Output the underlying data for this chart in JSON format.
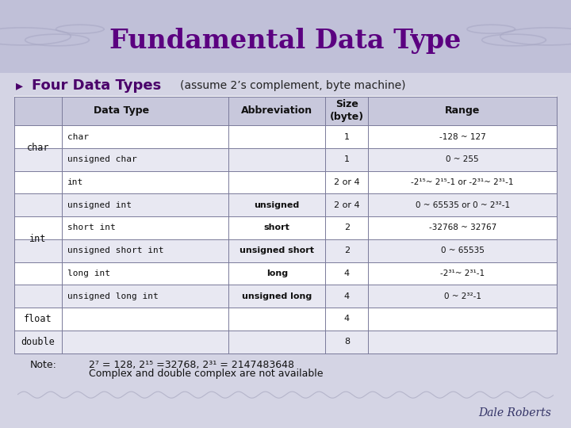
{
  "title": "Fundamental Data Type",
  "subtitle": "Four Data Types",
  "subtitle_note": "(assume 2’s complement, byte machine)",
  "bg_color": "#d4d4e4",
  "header_area_color": "#c0c0d8",
  "title_color": "#5b0080",
  "subtitle_color": "#4a006a",
  "table_header": [
    "Data Type",
    "Abbreviation",
    "Size\n(byte)",
    "Range"
  ],
  "rows": [
    {
      "group": "char",
      "col1": "char",
      "col2": "",
      "col3": "1",
      "col4": "-128 ~ 127"
    },
    {
      "group": "char",
      "col1": "unsigned char",
      "col2": "",
      "col3": "1",
      "col4": "0 ~ 255"
    },
    {
      "group": "int",
      "col1": "int",
      "col2": "",
      "col3": "2 or 4",
      "col4": "-2¹⁵~ 2¹⁵-1 or -2³¹~ 2³¹-1"
    },
    {
      "group": "int",
      "col1": "unsigned int",
      "col2": "unsigned",
      "col3": "2 or 4",
      "col4": "0 ~ 65535 or 0 ~ 2³²-1"
    },
    {
      "group": "int",
      "col1": "short int",
      "col2": "short",
      "col3": "2",
      "col4": "-32768 ~ 32767"
    },
    {
      "group": "int",
      "col1": "unsigned short int",
      "col2": "unsigned short",
      "col3": "2",
      "col4": "0 ~ 65535"
    },
    {
      "group": "int",
      "col1": "long int",
      "col2": "long",
      "col3": "4",
      "col4": "-2³¹~ 2³¹-1"
    },
    {
      "group": "int",
      "col1": "unsigned long int",
      "col2": "unsigned long",
      "col3": "4",
      "col4": "0 ~ 2³²-1"
    },
    {
      "group": "float",
      "col1": "",
      "col2": "",
      "col3": "4",
      "col4": ""
    },
    {
      "group": "double",
      "col1": "",
      "col2": "",
      "col3": "8",
      "col4": ""
    }
  ],
  "note_label": "Note:",
  "note_line1": "2⁷ = 128, 2¹⁵ =32768, 2³¹ = 2147483648",
  "note_line2": "Complex and double complex are not available",
  "footer": "Dale Roberts",
  "table_line_color": "#7a7a9a",
  "table_bg_white": "#ffffff",
  "table_bg_light": "#e8e8f2",
  "header_row_bg": "#c8c8dc"
}
